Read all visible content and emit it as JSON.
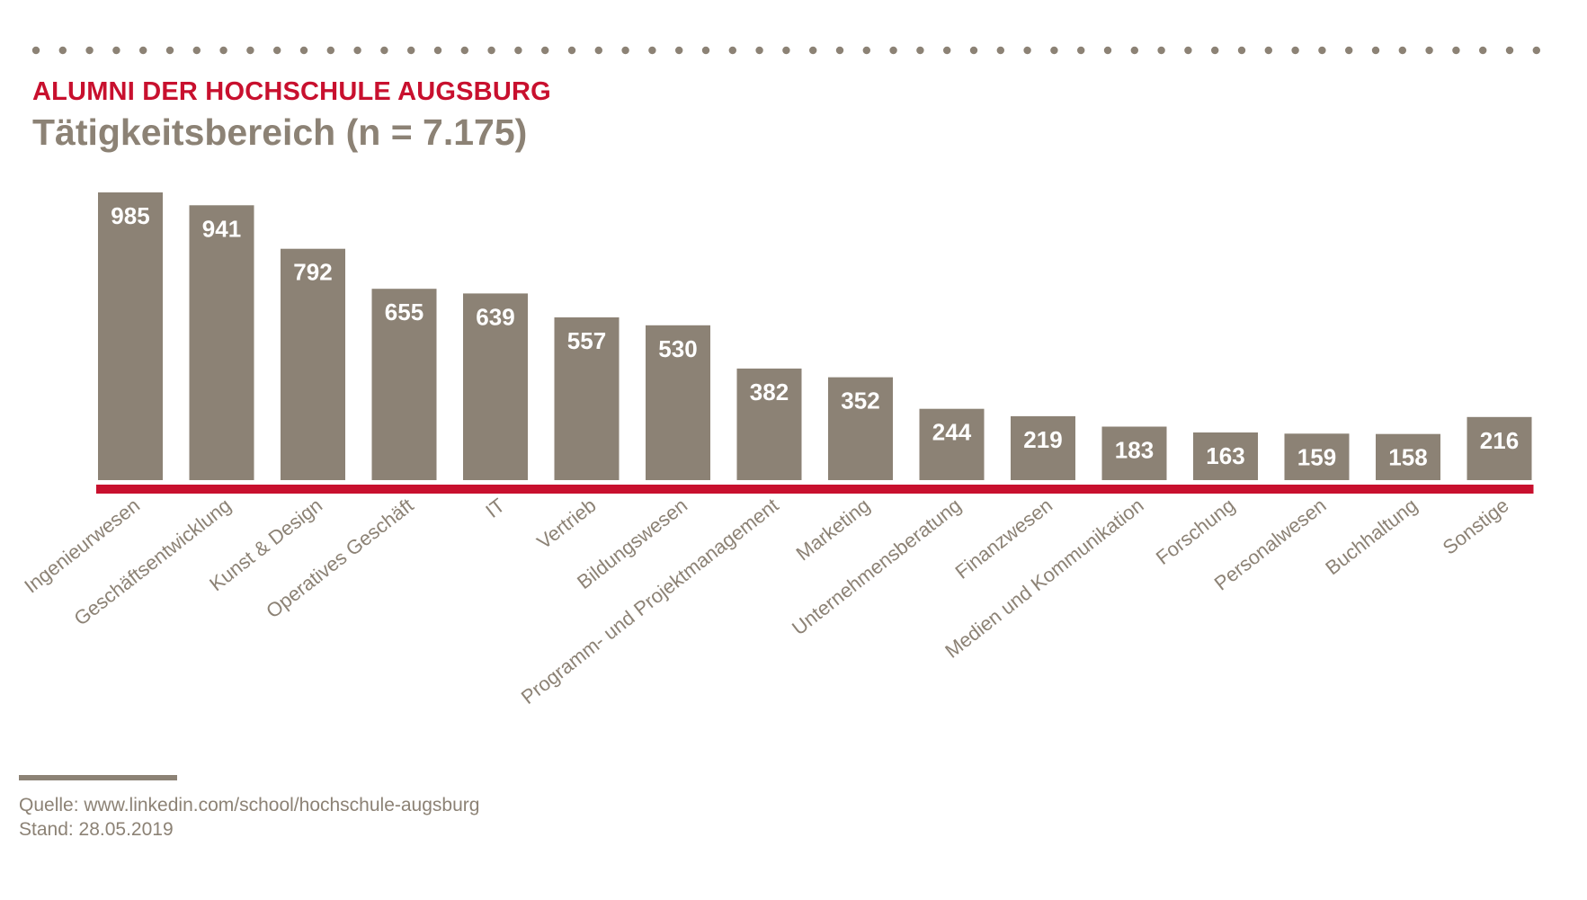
{
  "header": {
    "kicker": "ALUMNI DER HOCHSCHULE AUGSBURG",
    "headline": "Tätigkeitsbereich (n = 7.175)"
  },
  "footer": {
    "source": "Quelle: www.linkedin.com/school/hochschule-augsburg",
    "date": "Stand: 28.05.2019"
  },
  "colors": {
    "bar": "#8c8275",
    "baseline": "#c8102e",
    "kicker": "#c8102e",
    "text": "#8c8275",
    "value_label": "#ffffff",
    "dots": "#8c8275"
  },
  "chart_data": {
    "type": "bar",
    "title": "Tätigkeitsbereich (n = 7.175)",
    "categories": [
      "Ingenieurwesen",
      "Geschäftsentwicklung",
      "Kunst & Design",
      "Operatives Geschäft",
      "IT",
      "Vertrieb",
      "Bildungswesen",
      "Programm- und Projektmanagement",
      "Marketing",
      "Unternehmensberatung",
      "Finanzwesen",
      "Medien und Kommunikation",
      "Forschung",
      "Personalwesen",
      "Buchhaltung",
      "Sonstige"
    ],
    "values": [
      985,
      941,
      792,
      655,
      639,
      557,
      530,
      382,
      352,
      244,
      219,
      183,
      163,
      159,
      158,
      216
    ],
    "xlabel": "",
    "ylabel": "",
    "ylim": [
      0,
      985
    ],
    "grid": false,
    "legend": "none",
    "value_labels": "inside-top"
  }
}
